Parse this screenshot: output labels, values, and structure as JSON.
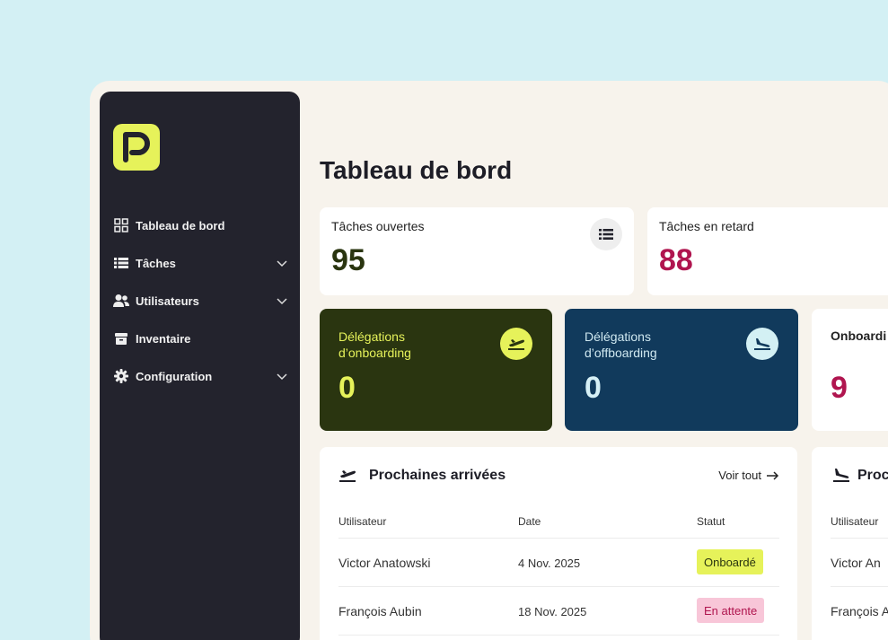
{
  "sidebar": {
    "logo_letter": "P",
    "items": [
      {
        "label": "Tableau de bord",
        "icon": "dashboard-icon",
        "has_submenu": false
      },
      {
        "label": "Tâches",
        "icon": "list-icon",
        "has_submenu": true
      },
      {
        "label": "Utilisateurs",
        "icon": "users-icon",
        "has_submenu": true
      },
      {
        "label": "Inventaire",
        "icon": "box-icon",
        "has_submenu": false
      },
      {
        "label": "Configuration",
        "icon": "gear-icon",
        "has_submenu": true
      }
    ]
  },
  "page": {
    "title": "Tableau de bord"
  },
  "stats": {
    "open_tasks": {
      "label": "Tâches ouvertes",
      "value": "95"
    },
    "late_tasks": {
      "label": "Tâches en retard",
      "value": "88"
    },
    "onboarding": {
      "label": "Délégations d’onboarding",
      "line1": "Délégations",
      "line2": "d’onboarding",
      "value": "0"
    },
    "offboarding": {
      "label": "Délégations d’offboarding",
      "line1": "Délégations",
      "line2": "d’offboarding",
      "value": "0"
    },
    "third": {
      "label": "Onboardi",
      "value": "9"
    }
  },
  "arrivals": {
    "title": "Prochaines arrivées",
    "see_all": "Voir tout",
    "columns": [
      "Utilisateur",
      "Date",
      "Statut"
    ],
    "rows": [
      {
        "user": "Victor Anatowski",
        "date": "4 Nov. 2025",
        "status": "Onboardé"
      },
      {
        "user": "François Aubin",
        "date": "18 Nov. 2025",
        "status": "En attente"
      }
    ]
  },
  "departures": {
    "title": "Proc",
    "column": "Utilisateur",
    "rows": [
      "Victor An",
      "François A"
    ]
  },
  "colors": {
    "lime": "#e6f25a",
    "dark_green": "#2a3510",
    "navy": "#113a5c",
    "crimson": "#b0154f",
    "sidebar": "#23232d"
  }
}
